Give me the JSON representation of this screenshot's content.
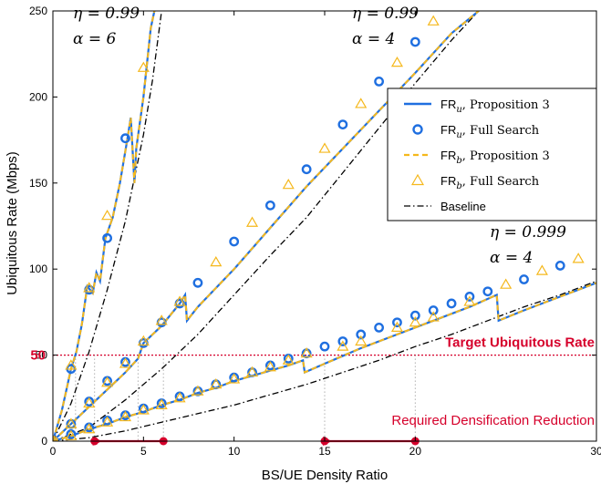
{
  "chart_data": {
    "type": "line",
    "xlabel": "BS/UE Density Ratio",
    "ylabel": "Ubiquitous Rate (Mbps)",
    "xlim": [
      0,
      30
    ],
    "ylim": [
      0,
      250
    ],
    "xticks": [
      0,
      5,
      10,
      15,
      20,
      30
    ],
    "xtick_labels": [
      "0",
      "5",
      "10",
      "15",
      "20",
      "30"
    ],
    "yticks": [
      0,
      50,
      100,
      150,
      200,
      250
    ],
    "ytick_labels": [
      "0",
      "50",
      "100",
      "150",
      "200",
      "250"
    ],
    "grid": false,
    "legend_position": "upper-right",
    "colors": {
      "fr_u": "#1f6fe0",
      "fr_b": "#f5b81c",
      "baseline": "#000000",
      "target": "#d6002b"
    },
    "legend": [
      {
        "key": "fr_u_prop",
        "math": "FR",
        "sub": "u",
        "text": ",  Proposition 3",
        "style": "line-blue"
      },
      {
        "key": "fr_u_full",
        "math": "FR",
        "sub": "u",
        "text": ",  Full Search",
        "style": "circle-blue"
      },
      {
        "key": "fr_b_prop",
        "math": "FR",
        "sub": "b",
        "text": ",  Proposition 3",
        "style": "dash-orange"
      },
      {
        "key": "fr_b_full",
        "math": "FR",
        "sub": "b",
        "text": ",  Full Search",
        "style": "triangle-orange"
      },
      {
        "key": "baseline",
        "math": "",
        "sub": "",
        "text": "Baseline",
        "style": "dashdot-black"
      }
    ],
    "annotations": [
      {
        "eta": "η = 0.99",
        "alpha": "α = 6"
      },
      {
        "eta": "η = 0.99",
        "alpha": "α = 4"
      },
      {
        "eta": "η = 0.999",
        "alpha": "α = 4"
      }
    ],
    "target": {
      "value": 50,
      "label": "Target Ubiquitous Rate",
      "y_label": "50"
    },
    "reduction": {
      "label": "Required Densification Reduction",
      "arrows": [
        {
          "from": 6.1,
          "to": 2.3
        },
        {
          "from": 20.0,
          "to": 15.0
        }
      ]
    },
    "vertical_guides": [
      1.25,
      2.3,
      4.7,
      6.1,
      15.0,
      20.0
    ],
    "series": [
      {
        "group": "eta0.99_alpha6",
        "proposition": [
          [
            0,
            0
          ],
          [
            0.5,
            18
          ],
          [
            1,
            42
          ],
          [
            1.3,
            52
          ],
          [
            1.6,
            68
          ],
          [
            1.9,
            90
          ],
          [
            2.2,
            86
          ],
          [
            2.4,
            98
          ],
          [
            2.6,
            93
          ],
          [
            2.9,
            118
          ],
          [
            3.3,
            130
          ],
          [
            3.7,
            150
          ],
          [
            4.1,
            175
          ],
          [
            4.3,
            188
          ],
          [
            4.5,
            150
          ],
          [
            4.6,
            170
          ],
          [
            5,
            200
          ],
          [
            5.4,
            240
          ],
          [
            5.6,
            250
          ]
        ],
        "full_search_u": [
          [
            1,
            42
          ],
          [
            2,
            88
          ],
          [
            3,
            118
          ],
          [
            4,
            176
          ]
        ],
        "full_search_b": [
          [
            1,
            44
          ],
          [
            2,
            89
          ],
          [
            3,
            131
          ],
          [
            5,
            217
          ]
        ],
        "baseline": [
          [
            0,
            0
          ],
          [
            1,
            22
          ],
          [
            2,
            52
          ],
          [
            3,
            88
          ],
          [
            4,
            128
          ],
          [
            5,
            178
          ],
          [
            5.5,
            210
          ],
          [
            6,
            250
          ]
        ]
      },
      {
        "group": "eta0.99_alpha4",
        "proposition": [
          [
            0,
            0
          ],
          [
            1,
            10
          ],
          [
            2,
            20
          ],
          [
            3,
            30
          ],
          [
            4,
            40
          ],
          [
            4.7,
            48
          ],
          [
            5,
            57
          ],
          [
            6,
            67
          ],
          [
            7,
            80
          ],
          [
            7.3,
            85
          ],
          [
            7.4,
            70
          ],
          [
            8,
            78
          ],
          [
            10,
            100
          ],
          [
            12,
            124
          ],
          [
            14,
            148
          ],
          [
            16,
            170
          ],
          [
            18,
            192
          ],
          [
            20,
            214
          ],
          [
            22,
            237
          ],
          [
            23.5,
            250
          ]
        ],
        "full_search_u": [
          [
            1,
            10
          ],
          [
            2,
            23
          ],
          [
            3,
            35
          ],
          [
            4,
            46
          ],
          [
            5,
            57
          ],
          [
            6,
            69
          ],
          [
            7,
            80
          ],
          [
            8,
            92
          ],
          [
            10,
            116
          ],
          [
            12,
            137
          ],
          [
            14,
            158
          ],
          [
            16,
            184
          ],
          [
            18,
            209
          ],
          [
            20,
            232
          ]
        ],
        "full_search_b": [
          [
            1,
            10
          ],
          [
            2,
            22
          ],
          [
            3,
            34
          ],
          [
            4,
            45
          ],
          [
            5,
            58
          ],
          [
            6,
            70
          ],
          [
            7,
            81
          ],
          [
            9,
            104
          ],
          [
            11,
            127
          ],
          [
            13,
            149
          ],
          [
            15,
            170
          ],
          [
            17,
            196
          ],
          [
            19,
            220
          ],
          [
            21,
            244
          ]
        ],
        "baseline": [
          [
            0,
            0
          ],
          [
            2,
            8
          ],
          [
            4,
            24
          ],
          [
            6,
            42
          ],
          [
            8,
            62
          ],
          [
            10,
            85
          ],
          [
            12,
            108
          ],
          [
            14,
            130
          ],
          [
            16,
            156
          ],
          [
            18,
            182
          ],
          [
            20,
            208
          ],
          [
            22,
            233
          ],
          [
            23.5,
            250
          ]
        ]
      },
      {
        "group": "eta0.999_alpha4",
        "proposition": [
          [
            0,
            0
          ],
          [
            1,
            3
          ],
          [
            2,
            7
          ],
          [
            3,
            10
          ],
          [
            4,
            14
          ],
          [
            5,
            17
          ],
          [
            6,
            21
          ],
          [
            7,
            24
          ],
          [
            8,
            28
          ],
          [
            9,
            31
          ],
          [
            10,
            35
          ],
          [
            11,
            38
          ],
          [
            12,
            41
          ],
          [
            13,
            44
          ],
          [
            13.8,
            47
          ],
          [
            13.9,
            40
          ],
          [
            15,
            45
          ],
          [
            17,
            54
          ],
          [
            19,
            62
          ],
          [
            21,
            70
          ],
          [
            23,
            78
          ],
          [
            24.5,
            85
          ],
          [
            24.6,
            70
          ],
          [
            26,
            76
          ],
          [
            28,
            84
          ],
          [
            30,
            92
          ]
        ],
        "full_search_u": [
          [
            1,
            4
          ],
          [
            2,
            8
          ],
          [
            3,
            12
          ],
          [
            4,
            15
          ],
          [
            5,
            19
          ],
          [
            6,
            22
          ],
          [
            7,
            26
          ],
          [
            8,
            29
          ],
          [
            9,
            33
          ],
          [
            10,
            37
          ],
          [
            11,
            40
          ],
          [
            12,
            44
          ],
          [
            13,
            48
          ],
          [
            14,
            51
          ],
          [
            15,
            55
          ],
          [
            16,
            58
          ],
          [
            17,
            62
          ],
          [
            18,
            66
          ],
          [
            19,
            69
          ],
          [
            20,
            73
          ],
          [
            21,
            76
          ],
          [
            22,
            80
          ],
          [
            23,
            84
          ],
          [
            24,
            87
          ],
          [
            26,
            94
          ],
          [
            28,
            102
          ]
        ],
        "full_search_b": [
          [
            1,
            3
          ],
          [
            2,
            7
          ],
          [
            3,
            11
          ],
          [
            4,
            14
          ],
          [
            5,
            18
          ],
          [
            6,
            21
          ],
          [
            7,
            25
          ],
          [
            8,
            29
          ],
          [
            9,
            33
          ],
          [
            10,
            36
          ],
          [
            11,
            40
          ],
          [
            12,
            43
          ],
          [
            13,
            47
          ],
          [
            14,
            51
          ],
          [
            16,
            55
          ],
          [
            17,
            58
          ],
          [
            19,
            66
          ],
          [
            20,
            69
          ],
          [
            21,
            72
          ],
          [
            23,
            81
          ],
          [
            25,
            91
          ],
          [
            27,
            99
          ],
          [
            29,
            106
          ]
        ],
        "baseline": [
          [
            0,
            0
          ],
          [
            2,
            2
          ],
          [
            4,
            6
          ],
          [
            6,
            11
          ],
          [
            8,
            16
          ],
          [
            10,
            21
          ],
          [
            12,
            27
          ],
          [
            14,
            33
          ],
          [
            16,
            40
          ],
          [
            18,
            47
          ],
          [
            20,
            55
          ],
          [
            22,
            62
          ],
          [
            24,
            70
          ],
          [
            26,
            78
          ],
          [
            28,
            85
          ],
          [
            30,
            93
          ]
        ]
      }
    ]
  }
}
